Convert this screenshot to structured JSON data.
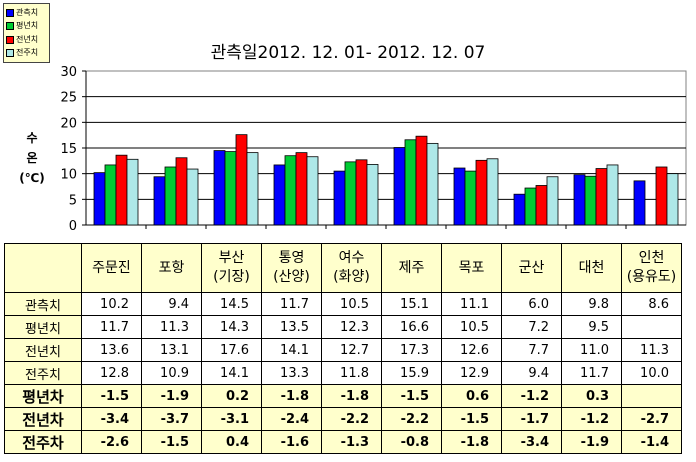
{
  "legend": [
    {
      "label": "관측치",
      "color": "#0000ff"
    },
    {
      "label": "평년치",
      "color": "#00cc33"
    },
    {
      "label": "전년치",
      "color": "#ff0000"
    },
    {
      "label": "전주치",
      "color": "#aee8e8"
    }
  ],
  "chart_data": {
    "type": "bar",
    "title": "관측일2012. 12. 01-  2012. 12. 07",
    "ylabel_lines": [
      "수",
      "온",
      "(℃)"
    ],
    "ylim": [
      0,
      30
    ],
    "yticks": [
      0,
      5,
      10,
      15,
      20,
      25,
      30
    ],
    "grid": true,
    "legend_position": "top-left",
    "categories": [
      "주문진",
      "포항",
      "부산(기장)",
      "통영(산양)",
      "여수(화양)",
      "제주",
      "목포",
      "군산",
      "대천",
      "인천(용유도)"
    ],
    "series": [
      {
        "name": "관측치",
        "color": "#0000ff",
        "values": [
          10.2,
          9.4,
          14.5,
          11.7,
          10.5,
          15.1,
          11.1,
          6.0,
          9.8,
          8.6
        ]
      },
      {
        "name": "평년치",
        "color": "#00cc33",
        "values": [
          11.7,
          11.3,
          14.3,
          13.5,
          12.3,
          16.6,
          10.5,
          7.2,
          9.5,
          null
        ]
      },
      {
        "name": "전년치",
        "color": "#ff0000",
        "values": [
          13.6,
          13.1,
          17.6,
          14.1,
          12.7,
          17.3,
          12.6,
          7.7,
          11.0,
          11.3
        ]
      },
      {
        "name": "전주치",
        "color": "#aee8e8",
        "values": [
          12.8,
          10.9,
          14.1,
          13.3,
          11.8,
          15.9,
          12.9,
          9.4,
          11.7,
          10.0
        ]
      }
    ]
  },
  "table": {
    "header": [
      [
        "주문진"
      ],
      [
        "포항"
      ],
      [
        "부산",
        "(기장)"
      ],
      [
        "통영",
        "(산양)"
      ],
      [
        "여수",
        "(화양)"
      ],
      [
        "제주"
      ],
      [
        "목포"
      ],
      [
        "군산"
      ],
      [
        "대천"
      ],
      [
        "인천",
        "(용유도)"
      ]
    ],
    "rows": [
      {
        "label": "관측치",
        "highlight": false,
        "values": [
          "10.2",
          "9.4",
          "14.5",
          "11.7",
          "10.5",
          "15.1",
          "11.1",
          "6.0",
          "9.8",
          "8.6"
        ]
      },
      {
        "label": "평년치",
        "highlight": false,
        "values": [
          "11.7",
          "11.3",
          "14.3",
          "13.5",
          "12.3",
          "16.6",
          "10.5",
          "7.2",
          "9.5",
          ""
        ]
      },
      {
        "label": "전년치",
        "highlight": false,
        "values": [
          "13.6",
          "13.1",
          "17.6",
          "14.1",
          "12.7",
          "17.3",
          "12.6",
          "7.7",
          "11.0",
          "11.3"
        ]
      },
      {
        "label": "전주치",
        "highlight": false,
        "values": [
          "12.8",
          "10.9",
          "14.1",
          "13.3",
          "11.8",
          "15.9",
          "12.9",
          "9.4",
          "11.7",
          "10.0"
        ]
      },
      {
        "label": "평년차",
        "highlight": true,
        "values": [
          "-1.5",
          "-1.9",
          "0.2",
          "-1.8",
          "-1.8",
          "-1.5",
          "0.6",
          "-1.2",
          "0.3",
          ""
        ]
      },
      {
        "label": "전년차",
        "highlight": true,
        "values": [
          "-3.4",
          "-3.7",
          "-3.1",
          "-2.4",
          "-2.2",
          "-2.2",
          "-1.5",
          "-1.7",
          "-1.2",
          "-2.7"
        ]
      },
      {
        "label": "전주차",
        "highlight": true,
        "values": [
          "-2.6",
          "-1.5",
          "0.4",
          "-1.6",
          "-1.3",
          "-0.8",
          "-1.8",
          "-3.4",
          "-1.9",
          "-1.4"
        ]
      }
    ]
  }
}
